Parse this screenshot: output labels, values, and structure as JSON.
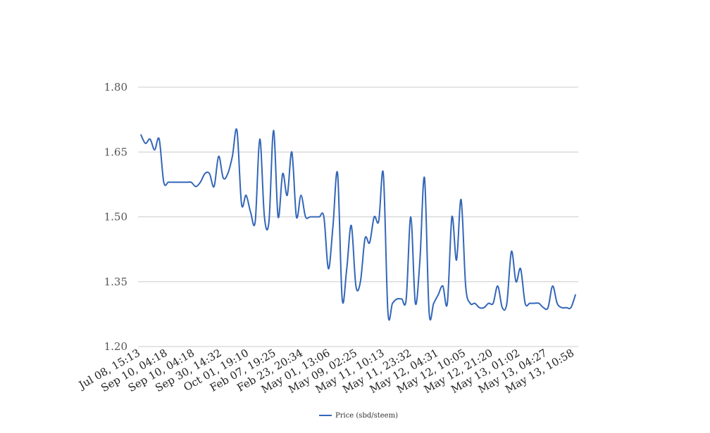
{
  "chart_data": {
    "type": "line",
    "title": "",
    "xlabel": "",
    "ylabel": "",
    "ylim": [
      1.2,
      1.8
    ],
    "yticks": [
      "1.20",
      "1.35",
      "1.50",
      "1.65",
      "1.80"
    ],
    "x_tick_labels": [
      "Jul 08, 15:13",
      "Sep 10, 04:18",
      "Sep 10, 04:18",
      "Sep 30, 14:32",
      "Oct 01, 19:10",
      "Feb 07, 19:25",
      "Feb 23, 20:34",
      "May 01, 13:06",
      "May 09, 02:25",
      "May 11, 10:13",
      "May 11, 23:32",
      "May 12, 04:31",
      "May 12, 10:05",
      "May 12, 21:20",
      "May 13, 01:02",
      "May 13, 04:27",
      "May 13, 10:58"
    ],
    "grid": true,
    "legend_position": "bottom",
    "series": [
      {
        "name": "Price (sbd/steem)",
        "color": "#3366b8",
        "values": [
          1.69,
          1.67,
          1.68,
          1.655,
          1.68,
          1.58,
          1.58,
          1.58,
          1.58,
          1.58,
          1.58,
          1.58,
          1.57,
          1.58,
          1.6,
          1.6,
          1.57,
          1.64,
          1.59,
          1.6,
          1.64,
          1.7,
          1.53,
          1.55,
          1.51,
          1.49,
          1.68,
          1.5,
          1.49,
          1.7,
          1.5,
          1.6,
          1.55,
          1.65,
          1.5,
          1.55,
          1.5,
          1.5,
          1.5,
          1.5,
          1.5,
          1.38,
          1.48,
          1.6,
          1.31,
          1.38,
          1.48,
          1.34,
          1.35,
          1.45,
          1.44,
          1.5,
          1.49,
          1.6,
          1.28,
          1.3,
          1.31,
          1.31,
          1.31,
          1.5,
          1.3,
          1.4,
          1.59,
          1.28,
          1.3,
          1.32,
          1.34,
          1.3,
          1.5,
          1.4,
          1.54,
          1.34,
          1.3,
          1.3,
          1.29,
          1.29,
          1.3,
          1.3,
          1.34,
          1.29,
          1.3,
          1.42,
          1.35,
          1.38,
          1.3,
          1.3,
          1.3,
          1.3,
          1.29,
          1.29,
          1.34,
          1.3,
          1.29,
          1.29,
          1.29,
          1.32
        ]
      }
    ]
  }
}
